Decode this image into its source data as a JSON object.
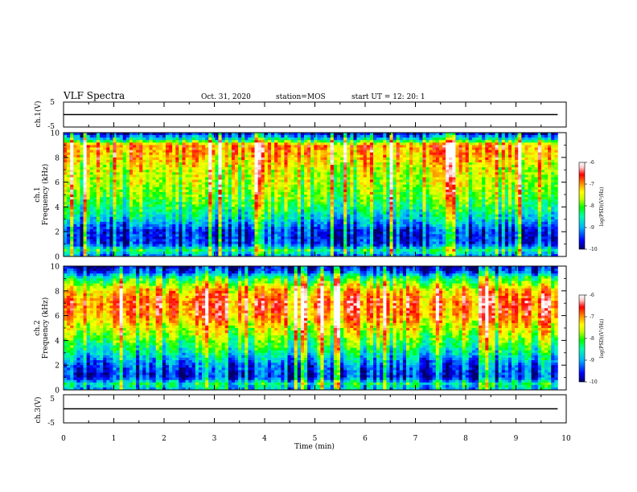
{
  "header": {
    "title": "VLF Spectra",
    "date": "Oct. 31, 2020",
    "station": "station=MOS",
    "start": "start  UT =   12: 20: 1"
  },
  "chart_data": [
    {
      "type": "line",
      "panel": "ch.1 waveform",
      "ylabel": "ch.1(V)",
      "ylim": [
        -5,
        5
      ],
      "yticks": [
        "5",
        "-5"
      ],
      "xlim": [
        0,
        10
      ],
      "series": [
        {
          "x": [
            0,
            9.83
          ],
          "y": [
            0,
            0
          ]
        }
      ]
    },
    {
      "type": "heatmap",
      "panel": "ch.1 spectrogram",
      "ylabel": "ch.1\nFrequency (kHz)",
      "ylim": [
        0,
        10
      ],
      "yticks": [
        "0",
        "2",
        "4",
        "6",
        "8",
        "10"
      ],
      "xlim": [
        0,
        10
      ],
      "data_end_x": 9.83,
      "colorscale": {
        "range": [
          -10,
          -6
        ],
        "ticks": [
          "-6",
          "-7",
          "-8",
          "-9",
          "-10"
        ],
        "label": "log(PSD)(V²/Hz)"
      },
      "frequency_profile_log_psd": [
        [
          0,
          -9.2
        ],
        [
          0.5,
          -8.4
        ],
        [
          1,
          -9.5
        ],
        [
          2,
          -9.6
        ],
        [
          2.5,
          -9.2
        ],
        [
          3,
          -8.8
        ],
        [
          4,
          -8.3
        ],
        [
          5,
          -7.9
        ],
        [
          6,
          -7.7
        ],
        [
          7,
          -7.6
        ],
        [
          8,
          -7.2
        ],
        [
          9,
          -7.0
        ],
        [
          9.5,
          -8.8
        ],
        [
          10,
          -9.8
        ]
      ]
    },
    {
      "type": "heatmap",
      "panel": "ch.2 spectrogram",
      "ylabel": "ch.2\nFrequency (kHz)",
      "ylim": [
        0,
        10
      ],
      "yticks": [
        "0",
        "2",
        "4",
        "6",
        "8",
        "10"
      ],
      "xlim": [
        0,
        10
      ],
      "data_end_x": 9.83,
      "colorscale": {
        "range": [
          -10,
          -6
        ],
        "ticks": [
          "-6",
          "-7",
          "-8",
          "-9",
          "-10"
        ],
        "label": "log(PSD)(V²/Hz)"
      },
      "frequency_profile_log_psd": [
        [
          0,
          -9.0
        ],
        [
          0.5,
          -8.5
        ],
        [
          1,
          -9.6
        ],
        [
          2,
          -9.3
        ],
        [
          3,
          -8.6
        ],
        [
          4,
          -8.0
        ],
        [
          5,
          -7.5
        ],
        [
          6,
          -7.0
        ],
        [
          7,
          -6.8
        ],
        [
          8,
          -7.2
        ],
        [
          9,
          -8.3
        ],
        [
          9.5,
          -9.3
        ],
        [
          10,
          -9.9
        ]
      ]
    },
    {
      "type": "line",
      "panel": "ch.3 waveform",
      "ylabel": "ch.3(V)",
      "ylim": [
        -5,
        5
      ],
      "yticks": [
        "5",
        "-5"
      ],
      "xlim": [
        0,
        10
      ],
      "xticks": [
        "0",
        "1",
        "2",
        "3",
        "4",
        "5",
        "6",
        "7",
        "8",
        "9",
        "10"
      ],
      "xlabel": "Time  (min)",
      "series": [
        {
          "x": [
            0,
            9.83
          ],
          "y": [
            0,
            0
          ]
        }
      ]
    }
  ],
  "colors": {
    "colormap": [
      "#000066",
      "#0000ff",
      "#00b4ff",
      "#00ffaa",
      "#00ff00",
      "#c8ff00",
      "#ffff00",
      "#ff8800",
      "#ff0000",
      "#ffc8c8",
      "#ffffff"
    ],
    "axis": "#000000"
  }
}
